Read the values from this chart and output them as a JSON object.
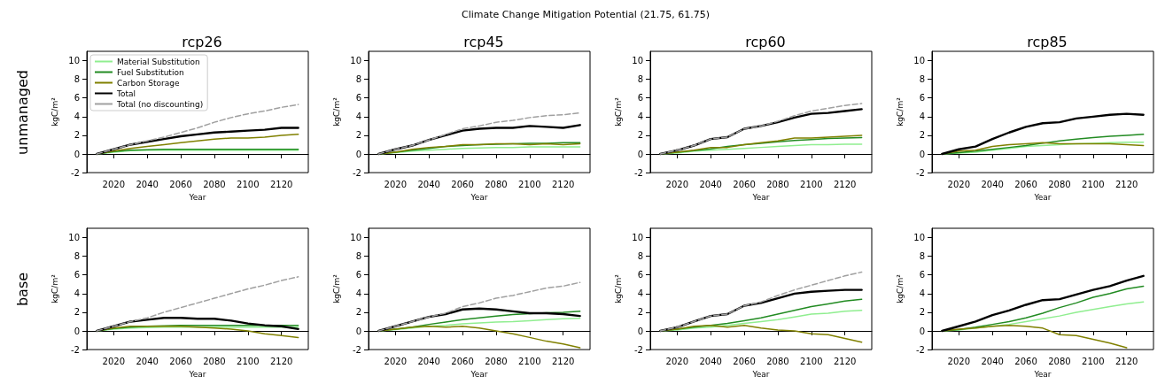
{
  "chart_data": [
    {
      "type": "line",
      "title": "rcp26",
      "xlabel": "Year",
      "ylabel": "kgC/m²",
      "legend": "top left",
      "annotations": [
        "Climate Change Mitigation Potential (21.75, 61.75)",
        "unmanaged"
      ],
      "xlim": [
        2004,
        2136
      ],
      "xticks": [
        2020,
        2040,
        2060,
        2080,
        2100,
        2120
      ],
      "ylim": [
        -2,
        11
      ],
      "yticks": [
        -2,
        0,
        2,
        4,
        6,
        8,
        10
      ],
      "x": [
        2010,
        2020,
        2030,
        2040,
        2050,
        2060,
        2070,
        2080,
        2090,
        2100,
        2110,
        2120,
        2130
      ],
      "series": [
        {
          "name": "Material Substitution",
          "color": "#90ee90",
          "values": [
            0,
            0.2,
            0.35,
            0.4,
            0.4,
            0.4,
            0.4,
            0.4,
            0.4,
            0.4,
            0.4,
            0.4,
            0.4
          ]
        },
        {
          "name": "Fuel Substitution",
          "color": "#228b22",
          "values": [
            0,
            0.25,
            0.4,
            0.45,
            0.5,
            0.5,
            0.5,
            0.5,
            0.5,
            0.5,
            0.5,
            0.5,
            0.5
          ]
        },
        {
          "name": "Carbon Storage",
          "color": "#808000",
          "values": [
            0,
            0.3,
            0.6,
            0.8,
            1.0,
            1.2,
            1.4,
            1.6,
            1.7,
            1.7,
            1.8,
            2.0,
            2.1
          ]
        },
        {
          "name": "Total",
          "color": "#000000",
          "values": [
            0,
            0.5,
            1.0,
            1.3,
            1.6,
            1.9,
            2.1,
            2.3,
            2.4,
            2.5,
            2.6,
            2.8,
            2.8
          ]
        },
        {
          "name": "Total (no discounting)",
          "color": "#a0a0a0",
          "line_style": "dashed",
          "values": [
            0,
            0.5,
            1.0,
            1.4,
            1.8,
            2.3,
            2.8,
            3.4,
            3.9,
            4.3,
            4.6,
            5.0,
            5.3
          ]
        }
      ]
    },
    {
      "type": "line",
      "title": "rcp45",
      "xlabel": "Year",
      "ylabel": "kgC/m²",
      "xlim": [
        2004,
        2136
      ],
      "xticks": [
        2020,
        2040,
        2060,
        2080,
        2100,
        2120
      ],
      "ylim": [
        -2,
        11
      ],
      "yticks": [
        -2,
        0,
        2,
        4,
        6,
        8,
        10
      ],
      "x": [
        2010,
        2020,
        2030,
        2040,
        2050,
        2060,
        2070,
        2080,
        2090,
        2100,
        2110,
        2120,
        2130
      ],
      "series": [
        {
          "color": "#90ee90",
          "values": [
            0,
            0.15,
            0.3,
            0.4,
            0.5,
            0.6,
            0.65,
            0.7,
            0.7,
            0.75,
            0.75,
            0.75,
            0.75
          ]
        },
        {
          "color": "#228b22",
          "values": [
            0,
            0.2,
            0.4,
            0.6,
            0.8,
            0.9,
            1.0,
            1.05,
            1.1,
            1.15,
            1.15,
            1.2,
            1.2
          ]
        },
        {
          "color": "#808000",
          "values": [
            0,
            0.2,
            0.5,
            0.7,
            0.8,
            1.0,
            1.0,
            1.1,
            1.1,
            1.0,
            1.1,
            1.0,
            1.1
          ]
        },
        {
          "color": "#000000",
          "values": [
            0,
            0.5,
            0.9,
            1.5,
            2.0,
            2.5,
            2.7,
            2.8,
            2.8,
            3.0,
            2.9,
            2.8,
            3.1
          ]
        },
        {
          "color": "#a0a0a0",
          "line_style": "dashed",
          "values": [
            0,
            0.5,
            0.9,
            1.5,
            2.1,
            2.7,
            3.0,
            3.4,
            3.6,
            3.9,
            4.1,
            4.2,
            4.4
          ]
        }
      ]
    },
    {
      "type": "line",
      "title": "rcp60",
      "xlabel": "Year",
      "ylabel": "kgC/m²",
      "xlim": [
        2004,
        2136
      ],
      "xticks": [
        2020,
        2040,
        2060,
        2080,
        2100,
        2120
      ],
      "ylim": [
        -2,
        11
      ],
      "yticks": [
        -2,
        0,
        2,
        4,
        6,
        8,
        10
      ],
      "x": [
        2010,
        2020,
        2030,
        2040,
        2050,
        2060,
        2070,
        2080,
        2090,
        2100,
        2110,
        2120,
        2130
      ],
      "series": [
        {
          "color": "#90ee90",
          "values": [
            0,
            0.1,
            0.3,
            0.4,
            0.5,
            0.6,
            0.7,
            0.8,
            0.9,
            1.0,
            1.0,
            1.05,
            1.05
          ]
        },
        {
          "color": "#228b22",
          "values": [
            0,
            0.2,
            0.35,
            0.55,
            0.8,
            1.0,
            1.15,
            1.3,
            1.45,
            1.55,
            1.65,
            1.7,
            1.75
          ]
        },
        {
          "color": "#808000",
          "values": [
            0,
            0.2,
            0.4,
            0.7,
            0.7,
            1.0,
            1.2,
            1.4,
            1.7,
            1.7,
            1.8,
            1.9,
            2.0
          ]
        },
        {
          "color": "#000000",
          "values": [
            0,
            0.4,
            0.9,
            1.6,
            1.8,
            2.7,
            3.0,
            3.4,
            3.9,
            4.3,
            4.4,
            4.6,
            4.8
          ]
        },
        {
          "color": "#a0a0a0",
          "line_style": "dashed",
          "values": [
            0,
            0.4,
            0.9,
            1.6,
            1.8,
            2.7,
            3.0,
            3.5,
            4.1,
            4.6,
            4.9,
            5.2,
            5.4
          ]
        }
      ]
    },
    {
      "type": "line",
      "title": "rcp85",
      "xlabel": "Year",
      "ylabel": "kgC/m²",
      "xlim": [
        2004,
        2136
      ],
      "xticks": [
        2020,
        2040,
        2060,
        2080,
        2100,
        2120
      ],
      "ylim": [
        -2,
        11
      ],
      "yticks": [
        -2,
        0,
        2,
        4,
        6,
        8,
        10
      ],
      "x": [
        2010,
        2020,
        2030,
        2040,
        2050,
        2060,
        2070,
        2080,
        2090,
        2100,
        2110,
        2120,
        2130
      ],
      "series": [
        {
          "color": "#90ee90",
          "values": [
            0,
            0.1,
            0.2,
            0.4,
            0.6,
            0.8,
            0.9,
            1.0,
            1.1,
            1.15,
            1.2,
            1.25,
            1.25
          ]
        },
        {
          "color": "#228b22",
          "values": [
            0,
            0.15,
            0.3,
            0.5,
            0.7,
            0.9,
            1.15,
            1.4,
            1.6,
            1.75,
            1.9,
            2.0,
            2.1
          ]
        },
        {
          "color": "#808000",
          "values": [
            0,
            0.3,
            0.4,
            0.8,
            1.0,
            1.1,
            1.2,
            1.1,
            1.1,
            1.1,
            1.1,
            1.0,
            0.9
          ]
        },
        {
          "color": "#000000",
          "values": [
            0,
            0.5,
            0.8,
            1.6,
            2.3,
            2.9,
            3.3,
            3.4,
            3.8,
            4.0,
            4.2,
            4.3,
            4.2
          ]
        }
      ]
    },
    {
      "type": "line",
      "title": null,
      "xlabel": "Year",
      "ylabel": "kgC/m²",
      "annotations": [
        "base"
      ],
      "xlim": [
        2004,
        2136
      ],
      "xticks": [
        2020,
        2040,
        2060,
        2080,
        2100,
        2120
      ],
      "ylim": [
        -2,
        11
      ],
      "yticks": [
        -2,
        0,
        2,
        4,
        6,
        8,
        10
      ],
      "x": [
        2010,
        2020,
        2030,
        2040,
        2050,
        2060,
        2070,
        2080,
        2090,
        2100,
        2110,
        2120,
        2130
      ],
      "series": [
        {
          "color": "#90ee90",
          "values": [
            0,
            0.2,
            0.3,
            0.35,
            0.4,
            0.4,
            0.4,
            0.4,
            0.4,
            0.4,
            0.4,
            0.4,
            0.4
          ]
        },
        {
          "color": "#228b22",
          "values": [
            0,
            0.25,
            0.4,
            0.5,
            0.55,
            0.6,
            0.6,
            0.6,
            0.6,
            0.6,
            0.6,
            0.6,
            0.6
          ]
        },
        {
          "color": "#808000",
          "values": [
            0,
            0.3,
            0.5,
            0.5,
            0.5,
            0.5,
            0.4,
            0.3,
            0.2,
            0.0,
            -0.3,
            -0.5,
            -0.7
          ]
        },
        {
          "color": "#000000",
          "values": [
            0,
            0.5,
            1.0,
            1.2,
            1.4,
            1.4,
            1.3,
            1.3,
            1.1,
            0.8,
            0.6,
            0.5,
            0.2
          ]
        },
        {
          "color": "#a0a0a0",
          "line_style": "dashed",
          "values": [
            0,
            0.5,
            1.0,
            1.4,
            2.0,
            2.5,
            3.0,
            3.5,
            4.0,
            4.5,
            4.9,
            5.4,
            5.8
          ]
        }
      ]
    },
    {
      "type": "line",
      "xlabel": "Year",
      "ylabel": "kgC/m²",
      "xlim": [
        2004,
        2136
      ],
      "xticks": [
        2020,
        2040,
        2060,
        2080,
        2100,
        2120
      ],
      "ylim": [
        -2,
        11
      ],
      "yticks": [
        -2,
        0,
        2,
        4,
        6,
        8,
        10
      ],
      "x": [
        2010,
        2020,
        2030,
        2040,
        2050,
        2060,
        2070,
        2080,
        2090,
        2100,
        2110,
        2120,
        2130
      ],
      "series": [
        {
          "color": "#90ee90",
          "values": [
            0,
            0.15,
            0.3,
            0.5,
            0.6,
            0.75,
            0.85,
            0.95,
            1.0,
            1.1,
            1.2,
            1.3,
            1.35
          ]
        },
        {
          "color": "#228b22",
          "values": [
            0,
            0.2,
            0.4,
            0.7,
            0.95,
            1.2,
            1.4,
            1.6,
            1.75,
            1.85,
            1.95,
            2.0,
            2.1
          ]
        },
        {
          "color": "#808000",
          "values": [
            0,
            0.2,
            0.4,
            0.5,
            0.4,
            0.5,
            0.3,
            0,
            -0.3,
            -0.7,
            -1.1,
            -1.4,
            -1.8
          ]
        },
        {
          "color": "#000000",
          "values": [
            0,
            0.5,
            1.0,
            1.5,
            1.8,
            2.3,
            2.4,
            2.3,
            2.1,
            1.9,
            1.9,
            1.8,
            1.6
          ]
        },
        {
          "color": "#a0a0a0",
          "line_style": "dashed",
          "values": [
            0,
            0.5,
            1.0,
            1.5,
            1.9,
            2.6,
            3.0,
            3.5,
            3.8,
            4.2,
            4.6,
            4.8,
            5.2
          ]
        }
      ]
    },
    {
      "type": "line",
      "xlabel": "Year",
      "ylabel": "kgC/m²",
      "xlim": [
        2004,
        2136
      ],
      "xticks": [
        2020,
        2040,
        2060,
        2080,
        2100,
        2120
      ],
      "ylim": [
        -2,
        11
      ],
      "yticks": [
        -2,
        0,
        2,
        4,
        6,
        8,
        10
      ],
      "x": [
        2010,
        2020,
        2030,
        2040,
        2050,
        2060,
        2070,
        2080,
        2090,
        2100,
        2110,
        2120,
        2130
      ],
      "series": [
        {
          "color": "#90ee90",
          "values": [
            0,
            0.1,
            0.3,
            0.4,
            0.6,
            0.8,
            1.0,
            1.2,
            1.5,
            1.8,
            1.9,
            2.1,
            2.2
          ]
        },
        {
          "color": "#228b22",
          "values": [
            0,
            0.2,
            0.4,
            0.6,
            0.8,
            1.1,
            1.4,
            1.8,
            2.2,
            2.6,
            2.9,
            3.2,
            3.4
          ]
        },
        {
          "color": "#808000",
          "values": [
            0,
            0.2,
            0.5,
            0.6,
            0.4,
            0.6,
            0.3,
            0.1,
            0,
            -0.3,
            -0.4,
            -0.8,
            -1.2
          ]
        },
        {
          "color": "#000000",
          "values": [
            0,
            0.4,
            1.0,
            1.6,
            1.8,
            2.7,
            3.0,
            3.5,
            4.0,
            4.2,
            4.3,
            4.4,
            4.4
          ]
        },
        {
          "color": "#a0a0a0",
          "line_style": "dashed",
          "values": [
            0,
            0.4,
            1.0,
            1.6,
            1.8,
            2.7,
            3.1,
            3.8,
            4.4,
            4.9,
            5.4,
            5.9,
            6.3
          ]
        }
      ]
    },
    {
      "type": "line",
      "xlabel": "Year",
      "ylabel": "kgC/m²",
      "xlim": [
        2004,
        2136
      ],
      "xticks": [
        2020,
        2040,
        2060,
        2080,
        2100,
        2120
      ],
      "ylim": [
        -2,
        11
      ],
      "yticks": [
        -2,
        0,
        2,
        4,
        6,
        8,
        10
      ],
      "x": [
        2010,
        2020,
        2030,
        2040,
        2050,
        2060,
        2070,
        2080,
        2090,
        2100,
        2110,
        2120,
        2130
      ],
      "series": [
        {
          "color": "#90ee90",
          "values": [
            0,
            0.1,
            0.3,
            0.5,
            0.7,
            1.0,
            1.3,
            1.6,
            2.0,
            2.3,
            2.6,
            2.9,
            3.1
          ]
        },
        {
          "color": "#228b22",
          "values": [
            0,
            0.15,
            0.4,
            0.7,
            1.0,
            1.4,
            1.9,
            2.5,
            3.0,
            3.6,
            4.0,
            4.5,
            4.8
          ]
        },
        {
          "color": "#808000",
          "values": [
            0,
            0.2,
            0.3,
            0.5,
            0.6,
            0.5,
            0.3,
            -0.4,
            -0.5,
            -0.9,
            -1.3,
            -1.8,
            null
          ]
        },
        {
          "color": "#000000",
          "values": [
            0,
            0.5,
            1.0,
            1.7,
            2.2,
            2.8,
            3.3,
            3.4,
            3.9,
            4.4,
            4.8,
            5.4,
            5.9
          ]
        }
      ]
    }
  ]
}
